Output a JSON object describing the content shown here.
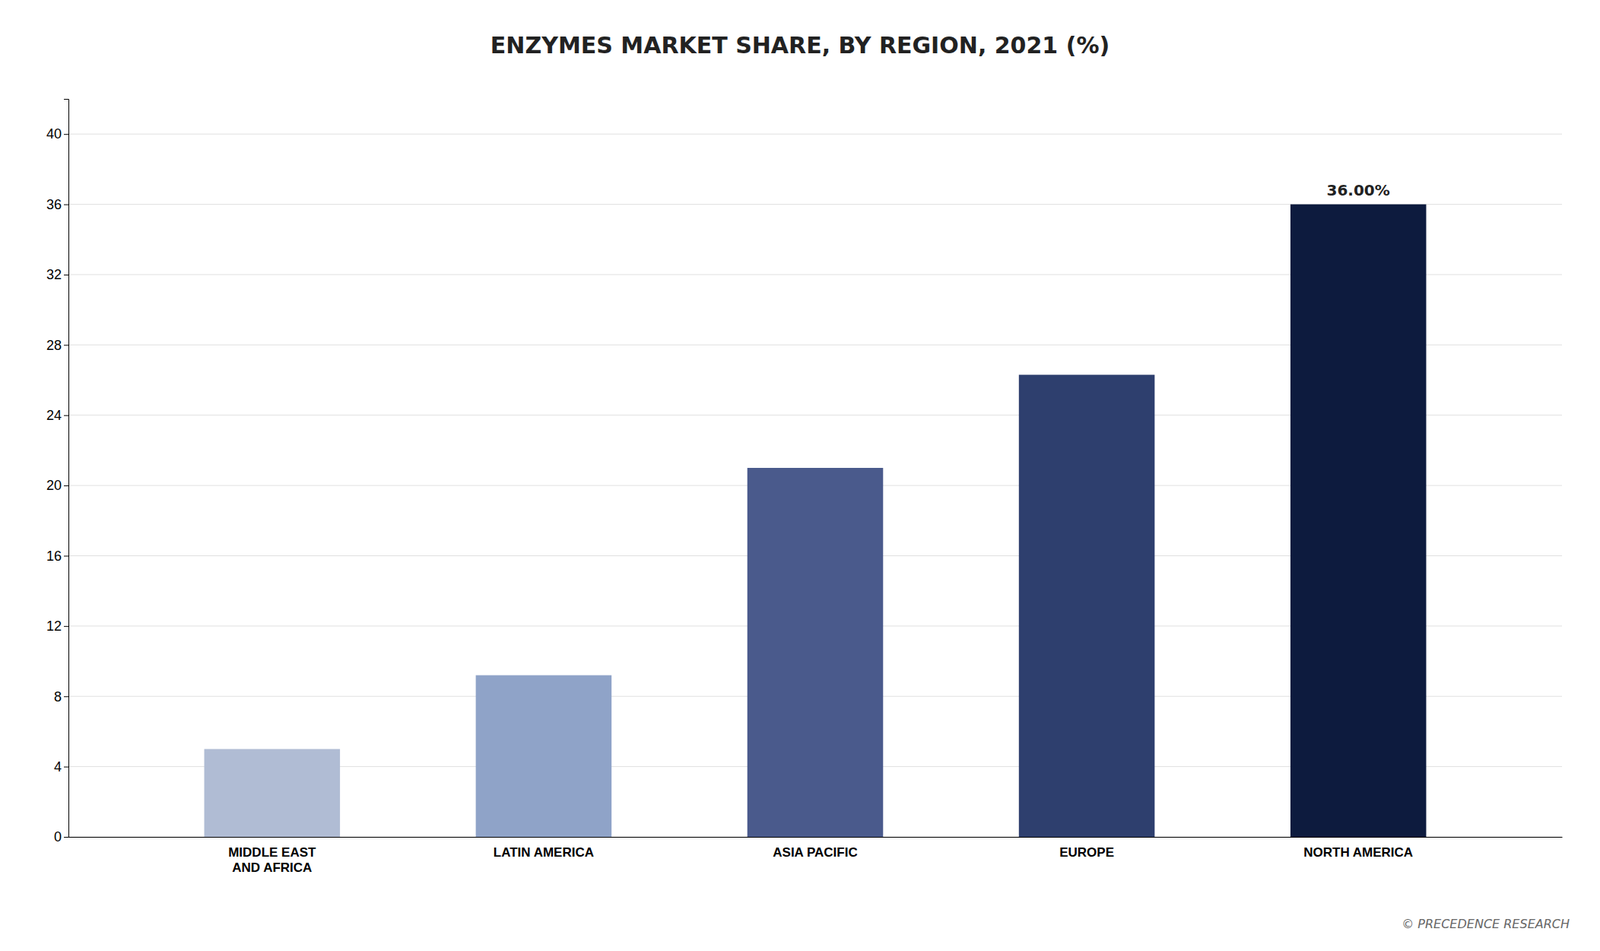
{
  "chart_data": {
    "type": "bar",
    "title": "ENZYMES MARKET SHARE, BY  REGION, 2021 (%)",
    "categories": [
      "MIDDLE EAST\nAND AFRICA",
      "LATIN AMERICA",
      "ASIA PACIFIC",
      "EUROPE",
      "NORTH AMERICA"
    ],
    "values": [
      5.0,
      9.2,
      21.0,
      26.3,
      36.0
    ],
    "value_labels": [
      null,
      null,
      null,
      null,
      "36.00%"
    ],
    "colors": [
      "#b0bcd4",
      "#8fa3c8",
      "#4a5a8c",
      "#2e3f6e",
      "#0d1b3e"
    ],
    "ylim": [
      0,
      42
    ],
    "yticks": [
      0,
      4,
      8,
      12,
      16,
      20,
      24,
      28,
      32,
      36,
      40
    ],
    "grid": true,
    "annotations": [
      {
        "text": "© PRECEDENCE RESEARCH"
      }
    ]
  }
}
